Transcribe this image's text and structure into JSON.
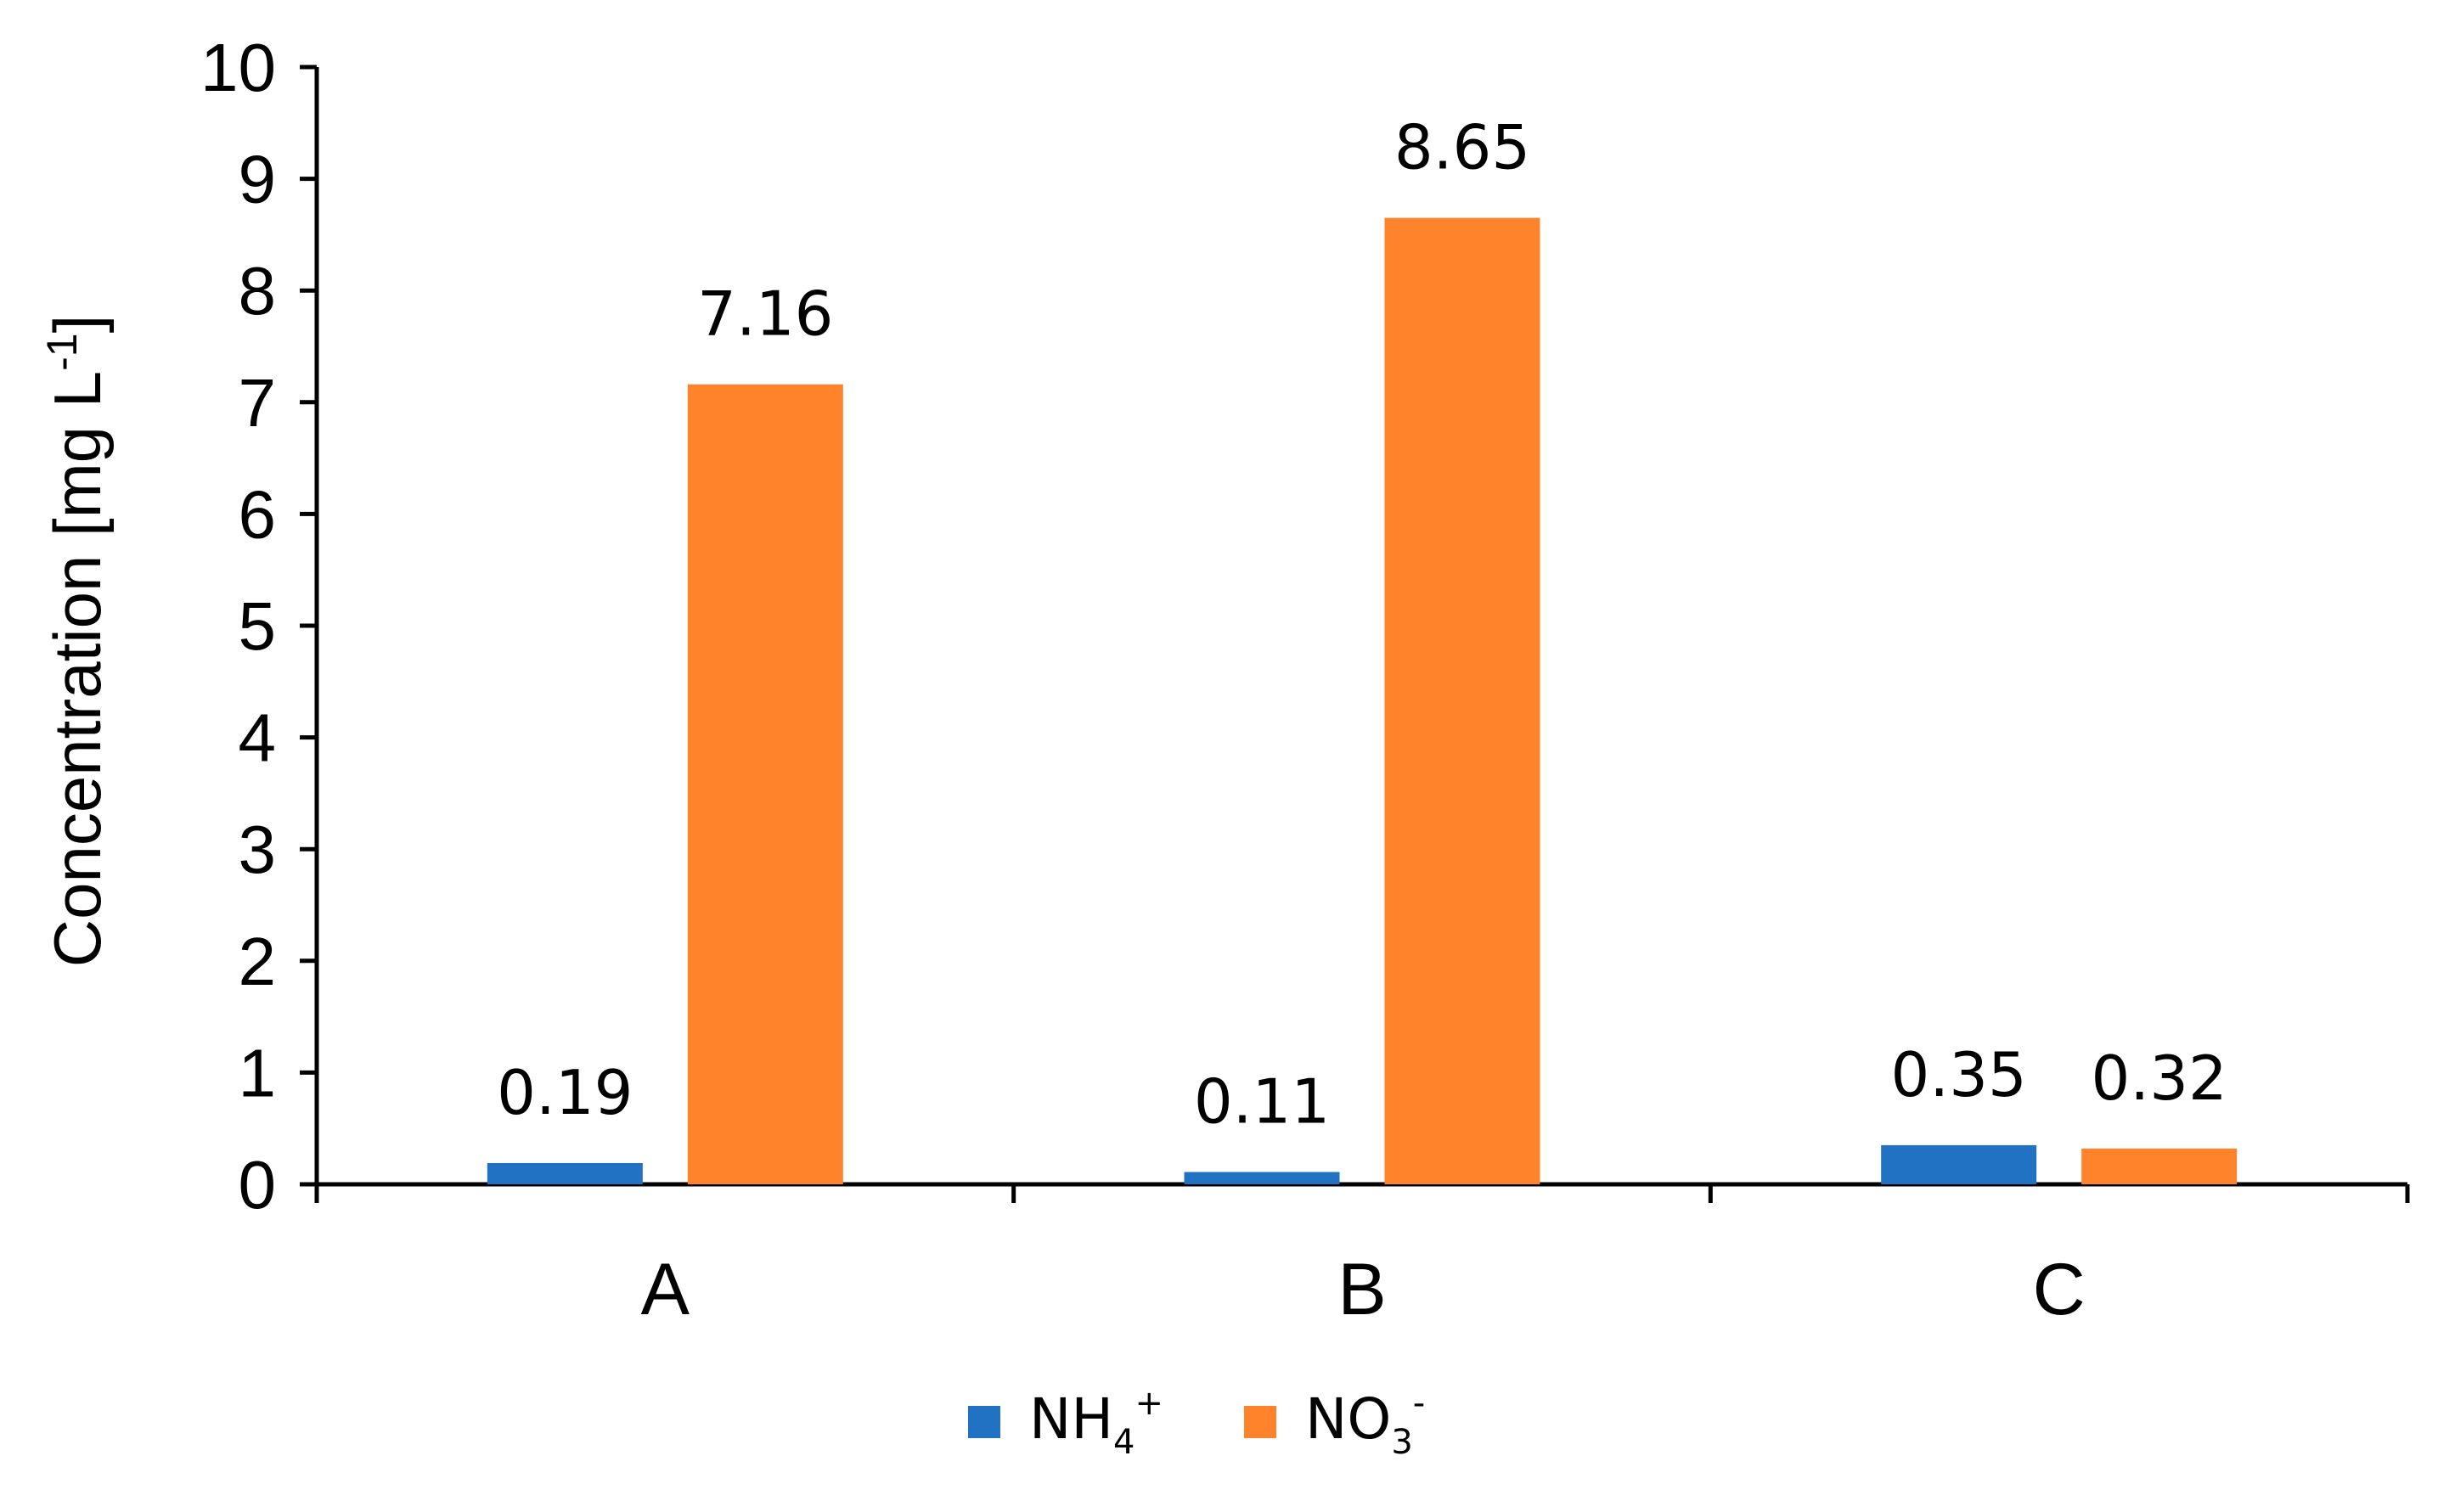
{
  "chart_data": {
    "type": "bar",
    "title": "",
    "xlabel": "",
    "ylabel": "Concentration [mg L-1]",
    "ylabel_parts": {
      "main": "Concentration [mg L",
      "sup": "-1",
      "end": "]"
    },
    "ylim": [
      0,
      10
    ],
    "yticks": [
      "0",
      "1",
      "2",
      "3",
      "4",
      "5",
      "6",
      "7",
      "8",
      "9",
      "10"
    ],
    "categories": [
      "A",
      "B",
      "C"
    ],
    "grid": false,
    "legend_position": "bottom",
    "series": [
      {
        "name": "NH4+",
        "name_parts": {
          "main": "NH",
          "sub": "4",
          "sup": "+"
        },
        "color": "#2272C3",
        "values": [
          0.19,
          0.11,
          0.35
        ],
        "data_labels": [
          "0.19",
          "0.11",
          "0.35"
        ]
      },
      {
        "name": "NO3-",
        "name_parts": {
          "main": "NO",
          "sub": "3",
          "sup": "-"
        },
        "color": "#FF832A",
        "values": [
          7.16,
          8.65,
          0.32
        ],
        "data_labels": [
          "7.16",
          "8.65",
          "0.32"
        ]
      }
    ]
  }
}
